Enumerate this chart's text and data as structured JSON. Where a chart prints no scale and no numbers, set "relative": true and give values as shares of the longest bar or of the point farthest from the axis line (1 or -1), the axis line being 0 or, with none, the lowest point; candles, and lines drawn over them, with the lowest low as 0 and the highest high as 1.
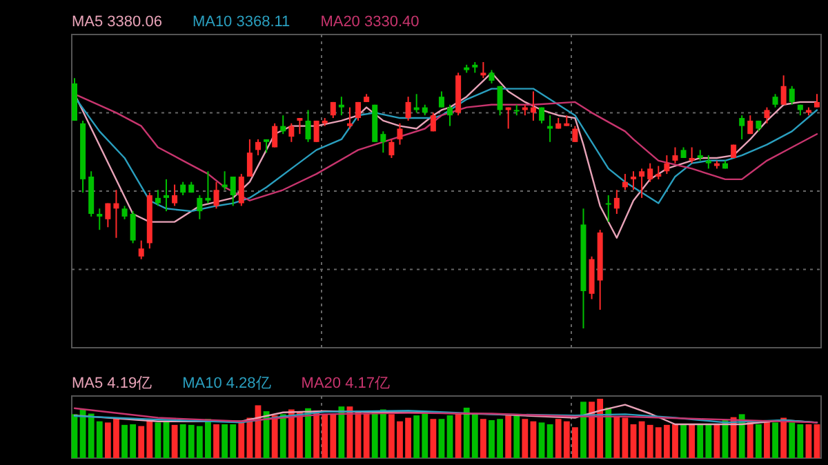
{
  "chart_data": [
    {
      "type": "candlestick",
      "relative": true,
      "grid": true,
      "legend": "top left",
      "categories": [
        null,
        null,
        null,
        null,
        null,
        null,
        null,
        null,
        null,
        null,
        null,
        null,
        null,
        null,
        null,
        null,
        null,
        null,
        null,
        null,
        null,
        null,
        null,
        null,
        null,
        null,
        null,
        null,
        null,
        null,
        null,
        null,
        null,
        null,
        null,
        null,
        null,
        null,
        null,
        null,
        null,
        null,
        null,
        null,
        null,
        null,
        null,
        null,
        null,
        null,
        null,
        null,
        null,
        null,
        null,
        null,
        null,
        null,
        null,
        null,
        null,
        null,
        null,
        null,
        null,
        null,
        null,
        null,
        null,
        null,
        null,
        null,
        null,
        null,
        null,
        null,
        null,
        null,
        null,
        null,
        null,
        null,
        null,
        null,
        null,
        null,
        null,
        null,
        null,
        null
      ],
      "ohlc": [
        [
          0.92,
          0.94,
          0.78,
          0.78
        ],
        [
          0.77,
          0.78,
          0.51,
          0.56
        ],
        [
          0.57,
          0.59,
          0.42,
          0.43
        ],
        [
          0.43,
          0.45,
          0.37,
          0.42
        ],
        [
          0.41,
          0.47,
          0.38,
          0.47
        ],
        [
          0.45,
          0.52,
          0.34,
          0.47
        ],
        [
          0.45,
          0.46,
          0.41,
          0.42
        ],
        [
          0.43,
          0.44,
          0.32,
          0.33
        ],
        [
          0.27,
          0.33,
          0.26,
          0.3
        ],
        [
          0.32,
          0.51,
          0.3,
          0.5
        ],
        [
          0.49,
          0.52,
          0.46,
          0.47
        ],
        [
          0.5,
          0.56,
          0.44,
          0.49
        ],
        [
          0.47,
          0.54,
          0.46,
          0.5
        ],
        [
          0.54,
          0.55,
          0.5,
          0.51
        ],
        [
          0.54,
          0.55,
          0.51,
          0.51
        ],
        [
          0.49,
          0.5,
          0.41,
          0.44
        ],
        [
          0.49,
          0.59,
          0.47,
          0.48
        ],
        [
          0.46,
          0.55,
          0.45,
          0.52
        ],
        [
          0.54,
          0.59,
          0.52,
          0.53
        ],
        [
          0.57,
          0.57,
          0.46,
          0.5
        ],
        [
          0.47,
          0.58,
          0.46,
          0.57
        ],
        [
          0.57,
          0.71,
          0.57,
          0.66
        ],
        [
          0.67,
          0.71,
          0.65,
          0.7
        ],
        [
          0.71,
          0.71,
          0.66,
          0.7
        ],
        [
          0.68,
          0.77,
          0.68,
          0.76
        ],
        [
          0.76,
          0.8,
          0.73,
          0.74
        ],
        [
          0.72,
          0.77,
          0.7,
          0.76
        ],
        [
          0.78,
          0.79,
          0.73,
          0.79
        ],
        [
          0.78,
          0.82,
          0.7,
          0.71
        ],
        [
          0.7,
          0.78,
          0.7,
          0.78
        ],
        [
          0.77,
          0.79,
          0.76,
          0.78
        ],
        [
          0.8,
          0.85,
          0.79,
          0.85
        ],
        [
          0.84,
          0.87,
          0.8,
          0.83
        ],
        [
          0.76,
          0.83,
          0.75,
          0.77
        ],
        [
          0.79,
          0.85,
          0.78,
          0.85
        ],
        [
          0.85,
          0.88,
          0.85,
          0.87
        ],
        [
          0.84,
          0.84,
          0.7,
          0.7
        ],
        [
          0.73,
          0.74,
          0.66,
          0.7
        ],
        [
          0.65,
          0.71,
          0.64,
          0.7
        ],
        [
          0.71,
          0.77,
          0.69,
          0.75
        ],
        [
          0.79,
          0.87,
          0.78,
          0.85
        ],
        [
          0.83,
          0.88,
          0.81,
          0.82
        ],
        [
          0.83,
          0.84,
          0.8,
          0.81
        ],
        [
          0.74,
          0.81,
          0.74,
          0.8
        ],
        [
          0.87,
          0.89,
          0.83,
          0.83
        ],
        [
          0.83,
          0.84,
          0.76,
          0.8
        ],
        [
          0.81,
          0.96,
          0.8,
          0.95
        ],
        [
          0.98,
          0.99,
          0.96,
          0.97
        ],
        [
          0.99,
          1,
          0.96,
          0.98
        ],
        [
          0.95,
          1,
          0.94,
          0.96
        ],
        [
          0.96,
          0.97,
          0.92,
          0.93
        ],
        [
          0.91,
          0.91,
          0.8,
          0.82
        ],
        [
          0.82,
          0.83,
          0.75,
          0.83
        ],
        [
          0.82,
          0.84,
          0.8,
          0.82
        ],
        [
          0.82,
          0.84,
          0.8,
          0.83
        ],
        [
          0.81,
          0.89,
          0.78,
          0.83
        ],
        [
          0.83,
          0.83,
          0.77,
          0.78
        ],
        [
          0.76,
          0.8,
          0.7,
          0.75
        ],
        [
          0.75,
          0.79,
          0.75,
          0.77
        ],
        [
          0.76,
          0.8,
          0.76,
          0.77
        ],
        [
          0.7,
          0.76,
          0.7,
          0.75
        ],
        [
          0.39,
          0.45,
          0,
          0.14
        ],
        [
          0.13,
          0.27,
          0.11,
          0.26
        ],
        [
          0.18,
          0.37,
          0.07,
          0.36
        ],
        [
          0.47,
          0.5,
          0.4,
          0.47
        ],
        [
          0.45,
          0.52,
          0.43,
          0.49
        ],
        [
          0.53,
          0.58,
          0.52,
          0.55
        ],
        [
          0.56,
          0.59,
          0.52,
          0.57
        ],
        [
          0.57,
          0.6,
          0.49,
          0.59
        ],
        [
          0.56,
          0.62,
          0.55,
          0.6
        ],
        [
          0.57,
          0.61,
          0.56,
          0.58
        ],
        [
          0.59,
          0.65,
          0.58,
          0.62
        ],
        [
          0.63,
          0.68,
          0.62,
          0.65
        ],
        [
          0.67,
          0.68,
          0.64,
          0.64
        ],
        [
          0.63,
          0.68,
          0.62,
          0.64
        ],
        [
          0.65,
          0.67,
          0.63,
          0.64
        ],
        [
          0.63,
          0.65,
          0.6,
          0.62
        ],
        [
          0.61,
          0.63,
          0.6,
          0.62
        ],
        [
          0.62,
          0.63,
          0.6,
          0.6
        ],
        [
          0.64,
          0.69,
          0.64,
          0.69
        ],
        [
          0.79,
          0.8,
          0.71,
          0.76
        ],
        [
          0.73,
          0.8,
          0.73,
          0.78
        ],
        [
          0.78,
          0.78,
          0.74,
          0.75
        ],
        [
          0.79,
          0.83,
          0.77,
          0.82
        ],
        [
          0.87,
          0.88,
          0.83,
          0.84
        ],
        [
          0.84,
          0.95,
          0.84,
          0.91
        ],
        [
          0.9,
          0.91,
          0.84,
          0.85
        ],
        [
          0.84,
          0.84,
          0.8,
          0.82
        ],
        [
          0.81,
          0.83,
          0.8,
          0.82
        ],
        [
          0.83,
          0.88,
          0.83,
          0.85
        ]
      ],
      "series": [
        {
          "name": "MA5 3380.06",
          "type": "line",
          "color": "#e8a3b8",
          "values": [
            0.88,
            null,
            null,
            null,
            null,
            null,
            null,
            0.43,
            null,
            0.4,
            null,
            null,
            0.4,
            null,
            null,
            0.46,
            null,
            null,
            null,
            0.49,
            null,
            0.55,
            null,
            0.67,
            0.73,
            null,
            0.76,
            null,
            null,
            0.76,
            null,
            null,
            0.78,
            null,
            0.8,
            0.83,
            null,
            0.78,
            null,
            0.76,
            null,
            0.75,
            null,
            0.8,
            0.82,
            0.83,
            null,
            0.87,
            null,
            0.93,
            0.96,
            null,
            0.89,
            null,
            0.85,
            null,
            0.82,
            null,
            0.8,
            null,
            0.79,
            0.69,
            null,
            0.46,
            null,
            0.34,
            null,
            0.48,
            null,
            0.56,
            null,
            0.6,
            null,
            0.62,
            null,
            0.64,
            null,
            0.64,
            null,
            0.65,
            null,
            0.71,
            null,
            0.78,
            null,
            0.84,
            null,
            0.85,
            null,
            0.85
          ]
        },
        {
          "name": "MA10 3368.11",
          "type": "line",
          "color": "#2a9fbf",
          "values": [
            0.87,
            null,
            null,
            0.74,
            null,
            null,
            0.64,
            null,
            null,
            0.48,
            null,
            0.45,
            null,
            null,
            0.44,
            null,
            null,
            0.46,
            null,
            0.47,
            null,
            0.49,
            null,
            0.53,
            null,
            null,
            0.6,
            null,
            null,
            0.67,
            null,
            null,
            0.71,
            null,
            0.8,
            null,
            0.81,
            null,
            null,
            0.79,
            null,
            null,
            null,
            0.79,
            0.8,
            null,
            null,
            0.86,
            null,
            null,
            0.9,
            null,
            null,
            null,
            null,
            0.9,
            null,
            null,
            0.84,
            null,
            0.8,
            null,
            0.7,
            null,
            0.6,
            null,
            0.55,
            null,
            null,
            null,
            0.47,
            null,
            0.57,
            null,
            0.62,
            null,
            0.63,
            null,
            0.63,
            null,
            0.65,
            null,
            null,
            0.69,
            null,
            null,
            0.74,
            null,
            null,
            0.82
          ]
        },
        {
          "name": "MA20 3330.40",
          "type": "line",
          "color": "#c8356e",
          "values": [
            0.88,
            null,
            null,
            null,
            null,
            0.81,
            null,
            null,
            0.76,
            null,
            0.68,
            null,
            null,
            0.63,
            null,
            null,
            0.58,
            null,
            0.53,
            null,
            null,
            0.48,
            null,
            null,
            null,
            0.52,
            null,
            null,
            null,
            0.58,
            null,
            null,
            null,
            null,
            0.67,
            null,
            null,
            null,
            0.71,
            null,
            null,
            null,
            0.75,
            null,
            0.8,
            null,
            null,
            0.83,
            null,
            null,
            0.84,
            null,
            null,
            null,
            null,
            0.84,
            null,
            null,
            null,
            null,
            0.85,
            null,
            0.81,
            null,
            null,
            null,
            0.74,
            0.71,
            null,
            null,
            0.63,
            null,
            null,
            null,
            0.6,
            null,
            null,
            null,
            0.56,
            null,
            0.56,
            null,
            null,
            0.63,
            null,
            null,
            0.68,
            null,
            null,
            0.73
          ]
        }
      ]
    },
    {
      "type": "bar",
      "relative": true,
      "grid": "x",
      "legend": "top left",
      "categories": [
        null,
        null,
        null,
        null,
        null,
        null,
        null,
        null,
        null,
        null,
        null,
        null,
        null,
        null,
        null,
        null,
        null,
        null,
        null,
        null,
        null,
        null,
        null,
        null,
        null,
        null,
        null,
        null,
        null,
        null,
        null,
        null,
        null,
        null,
        null,
        null,
        null,
        null,
        null,
        null,
        null,
        null,
        null,
        null,
        null,
        null,
        null,
        null,
        null,
        null,
        null,
        null,
        null,
        null,
        null,
        null,
        null,
        null,
        null,
        null,
        null,
        null,
        null,
        null,
        null,
        null,
        null,
        null,
        null,
        null,
        null,
        null,
        null,
        null,
        null,
        null,
        null,
        null,
        null,
        null,
        null,
        null,
        null,
        null,
        null,
        null,
        null,
        null,
        null,
        null
      ],
      "series": [
        {
          "type": "bar",
          "values": [
            0.74,
            0.82,
            0.75,
            0.62,
            0.6,
            0.67,
            0.56,
            0.57,
            0.54,
            0.66,
            0.6,
            0.62,
            0.56,
            0.57,
            0.56,
            0.54,
            0.66,
            0.57,
            0.57,
            0.57,
            0.62,
            0.68,
            0.89,
            0.79,
            0.72,
            0.74,
            0.82,
            0.79,
            0.84,
            0.8,
            0.74,
            0.74,
            0.87,
            0.87,
            0.8,
            0.76,
            0.79,
            0.82,
            0.74,
            0.62,
            0.68,
            0.72,
            0.76,
            0.66,
            0.66,
            0.72,
            0.74,
            0.85,
            0.74,
            0.66,
            0.64,
            0.66,
            0.74,
            0.72,
            0.66,
            0.62,
            0.6,
            0.57,
            0.66,
            0.62,
            0.52,
            0.95,
            0.95,
            1,
            0.85,
            0.7,
            0.68,
            0.57,
            0.62,
            0.56,
            0.52,
            0.56,
            0.57,
            0.57,
            0.57,
            0.57,
            0.56,
            0.57,
            0.64,
            0.69,
            0.74,
            0.64,
            0.57,
            0.64,
            0.6,
            0.68,
            0.6,
            0.57,
            0.57,
            0.57
          ],
          "colors": [
            "#00c000",
            "#00c000",
            "#00c000",
            "#00c000",
            "#ff2a2a",
            "#ff2a2a",
            "#00c000",
            "#00c000",
            "#ff2a2a",
            "#ff2a2a",
            "#00c000",
            "#00c000",
            "#ff2a2a",
            "#00c000",
            "#00c000",
            "#00c000",
            "#00c000",
            "#ff2a2a",
            "#00c000",
            "#00c000",
            "#ff2a2a",
            "#ff2a2a",
            "#ff2a2a",
            "#00c000",
            "#ff2a2a",
            "#00c000",
            "#ff2a2a",
            "#ff2a2a",
            "#00c000",
            "#ff2a2a",
            "#ff2a2a",
            "#ff2a2a",
            "#00c000",
            "#ff2a2a",
            "#ff2a2a",
            "#ff2a2a",
            "#00c000",
            "#00c000",
            "#ff2a2a",
            "#ff2a2a",
            "#ff2a2a",
            "#00c000",
            "#00c000",
            "#ff2a2a",
            "#00c000",
            "#00c000",
            "#ff2a2a",
            "#00c000",
            "#00c000",
            "#ff2a2a",
            "#00c000",
            "#00c000",
            "#ff2a2a",
            "#00c000",
            "#ff2a2a",
            "#ff2a2a",
            "#00c000",
            "#00c000",
            "#ff2a2a",
            "#ff2a2a",
            "#ff2a2a",
            "#00c000",
            "#ff2a2a",
            "#ff2a2a",
            "#00c000",
            "#ff2a2a",
            "#ff2a2a",
            "#ff2a2a",
            "#ff2a2a",
            "#ff2a2a",
            "#ff2a2a",
            "#ff2a2a",
            "#ff2a2a",
            "#00c000",
            "#ff2a2a",
            "#00c000",
            "#00c000",
            "#ff2a2a",
            "#00c000",
            "#ff2a2a",
            "#00c000",
            "#ff2a2a",
            "#00c000",
            "#ff2a2a",
            "#00c000",
            "#ff2a2a",
            "#00c000",
            "#00c000",
            "#ff2a2a",
            "#ff2a2a"
          ]
        },
        {
          "name": "MA5 4.19亿",
          "type": "line",
          "color": "#e8a3b8",
          "values": [
            0.72,
            null,
            null,
            null,
            null,
            null,
            null,
            null,
            null,
            null,
            0.62,
            null,
            null,
            null,
            null,
            null,
            null,
            null,
            null,
            null,
            0.62,
            null,
            null,
            null,
            null,
            0.77,
            null,
            null,
            null,
            null,
            0.79,
            null,
            null,
            null,
            null,
            null,
            null,
            null,
            null,
            null,
            0.77,
            null,
            null,
            null,
            null,
            null,
            null,
            null,
            null,
            null,
            0.74,
            null,
            null,
            null,
            null,
            null,
            null,
            null,
            null,
            null,
            0.68,
            null,
            null,
            0.8,
            null,
            null,
            0.9,
            null,
            null,
            0.75,
            null,
            null,
            0.57,
            null,
            null,
            null,
            null,
            null,
            null,
            null,
            0.57,
            null,
            null,
            null,
            null,
            0.64,
            null,
            null,
            null,
            0.6
          ]
        },
        {
          "name": "MA10 4.28亿",
          "type": "line",
          "color": "#2a9fbf",
          "values": [
            0.71,
            null,
            null,
            null,
            null,
            null,
            null,
            null,
            null,
            null,
            0.65,
            null,
            null,
            null,
            null,
            null,
            null,
            null,
            null,
            null,
            0.6,
            null,
            null,
            null,
            null,
            0.7,
            null,
            null,
            null,
            null,
            0.78,
            null,
            null,
            null,
            null,
            null,
            null,
            null,
            null,
            null,
            0.8,
            null,
            null,
            null,
            null,
            null,
            null,
            null,
            null,
            null,
            0.74,
            null,
            null,
            null,
            null,
            null,
            null,
            null,
            null,
            null,
            0.72,
            null,
            null,
            null,
            null,
            null,
            0.74,
            null,
            null,
            null,
            null,
            null,
            0.68,
            null,
            null,
            null,
            null,
            null,
            0.6,
            null,
            null,
            null,
            null,
            null,
            null,
            0.64,
            null,
            null,
            null,
            0.6
          ]
        },
        {
          "name": "MA20 4.17亿",
          "type": "line",
          "color": "#c8356e",
          "values": [
            0.84,
            null,
            null,
            null,
            null,
            null,
            null,
            null,
            null,
            null,
            0.68,
            null,
            null,
            null,
            null,
            null,
            null,
            null,
            null,
            null,
            0.62,
            null,
            null,
            null,
            null,
            null,
            null,
            null,
            null,
            null,
            0.74,
            null,
            null,
            null,
            null,
            null,
            null,
            null,
            null,
            null,
            0.76,
            null,
            null,
            null,
            null,
            null,
            null,
            null,
            null,
            null,
            0.75,
            null,
            null,
            null,
            null,
            null,
            null,
            null,
            null,
            null,
            0.7,
            null,
            null,
            null,
            null,
            null,
            0.7,
            null,
            null,
            null,
            null,
            null,
            null,
            null,
            null,
            0.66,
            null,
            null,
            null,
            null,
            null,
            null,
            null,
            null,
            null,
            null,
            null,
            null,
            null,
            0.6
          ]
        }
      ]
    }
  ]
}
